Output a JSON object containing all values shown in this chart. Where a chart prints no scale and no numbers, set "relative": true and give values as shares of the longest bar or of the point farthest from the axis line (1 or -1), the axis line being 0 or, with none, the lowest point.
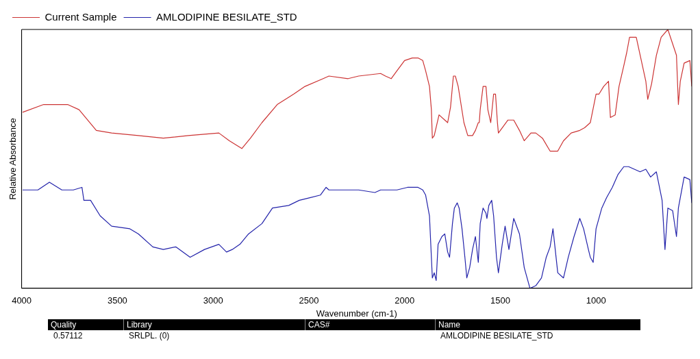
{
  "chart_data": {
    "type": "line",
    "relative": true,
    "xlabel": "Wavenumber (cm-1)",
    "ylabel": "Relative Absorbance",
    "legend": "top left",
    "grid": false,
    "marker": "none",
    "line_style": "solid",
    "xlim": [
      4000,
      500
    ],
    "xticks": [
      4000,
      3500,
      3000,
      2500,
      2000,
      1500,
      1000
    ],
    "annotations": [
      "Quality",
      "Library",
      "CAS#",
      "Name",
      "0.57112",
      "SRLPL. (0)",
      "AMLODIPINE BESILATE_STD"
    ],
    "series": [
      {
        "name": "Current Sample",
        "color": "#cc3333",
        "x": [
          3995,
          3885,
          3760,
          3700,
          3610,
          3530,
          3390,
          3260,
          3130,
          2970,
          2915,
          2850,
          2805,
          2745,
          2665,
          2580,
          2520,
          2425,
          2395,
          2295,
          2240,
          2125,
          2100,
          2070,
          2040,
          2000,
          1960,
          1930,
          1905,
          1890,
          1870,
          1860,
          1855,
          1845,
          1820,
          1790,
          1775,
          1760,
          1745,
          1735,
          1720,
          1690,
          1670,
          1645,
          1630,
          1615,
          1610,
          1605,
          1590,
          1575,
          1565,
          1550,
          1535,
          1525,
          1515,
          1510,
          1490,
          1460,
          1430,
          1400,
          1375,
          1340,
          1315,
          1280,
          1240,
          1200,
          1170,
          1130,
          1085,
          1060,
          1030,
          1000,
          985,
          960,
          935,
          925,
          900,
          880,
          855,
          840,
          825,
          790,
          740,
          730,
          710,
          685,
          660,
          625,
          580,
          570,
          560,
          540,
          510,
          500
        ],
        "values": [
          0.68,
          0.71,
          0.71,
          0.69,
          0.61,
          0.6,
          0.59,
          0.58,
          0.59,
          0.6,
          0.57,
          0.54,
          0.58,
          0.64,
          0.71,
          0.75,
          0.78,
          0.81,
          0.82,
          0.81,
          0.82,
          0.83,
          0.82,
          0.81,
          0.84,
          0.88,
          0.89,
          0.89,
          0.88,
          0.84,
          0.78,
          0.69,
          0.58,
          0.59,
          0.67,
          0.65,
          0.64,
          0.7,
          0.82,
          0.82,
          0.78,
          0.64,
          0.59,
          0.59,
          0.61,
          0.64,
          0.64,
          0.69,
          0.78,
          0.78,
          0.69,
          0.64,
          0.75,
          0.75,
          0.64,
          0.6,
          0.62,
          0.65,
          0.65,
          0.61,
          0.57,
          0.6,
          0.6,
          0.58,
          0.53,
          0.53,
          0.57,
          0.6,
          0.61,
          0.62,
          0.64,
          0.75,
          0.75,
          0.78,
          0.8,
          0.66,
          0.67,
          0.78,
          0.86,
          0.91,
          0.97,
          0.97,
          0.8,
          0.73,
          0.79,
          0.9,
          0.97,
          1,
          0.9,
          0.71,
          0.8,
          0.87,
          0.88,
          0.78
        ]
      },
      {
        "name": "AMLODIPINE BESILATE_STD",
        "color": "#2222aa",
        "x": [
          3995,
          3915,
          3855,
          3790,
          3730,
          3685,
          3675,
          3640,
          3590,
          3530,
          3435,
          3390,
          3315,
          3260,
          3195,
          3120,
          3045,
          2970,
          2930,
          2900,
          2860,
          2815,
          2745,
          2690,
          2605,
          2550,
          2495,
          2440,
          2410,
          2395,
          2240,
          2155,
          2125,
          2040,
          1985,
          1930,
          1905,
          1890,
          1870,
          1860,
          1855,
          1845,
          1835,
          1825,
          1805,
          1790,
          1775,
          1765,
          1750,
          1740,
          1725,
          1715,
          1700,
          1685,
          1675,
          1660,
          1645,
          1630,
          1615,
          1605,
          1590,
          1575,
          1570,
          1560,
          1545,
          1535,
          1520,
          1510,
          1490,
          1475,
          1455,
          1430,
          1400,
          1375,
          1345,
          1315,
          1285,
          1260,
          1240,
          1225,
          1200,
          1170,
          1145,
          1115,
          1085,
          1065,
          1040,
          1030,
          1015,
          1000,
          970,
          945,
          915,
          885,
          855,
          830,
          800,
          770,
          740,
          715,
          685,
          655,
          640,
          625,
          600,
          580,
          570,
          540,
          510,
          500
        ],
        "values": [
          0.38,
          0.38,
          0.41,
          0.38,
          0.38,
          0.39,
          0.34,
          0.34,
          0.28,
          0.24,
          0.23,
          0.21,
          0.16,
          0.15,
          0.16,
          0.12,
          0.15,
          0.17,
          0.14,
          0.15,
          0.17,
          0.21,
          0.25,
          0.31,
          0.32,
          0.34,
          0.35,
          0.36,
          0.39,
          0.38,
          0.38,
          0.37,
          0.38,
          0.38,
          0.39,
          0.39,
          0.38,
          0.36,
          0.28,
          0.12,
          0.04,
          0.06,
          0.03,
          0.17,
          0.2,
          0.21,
          0.14,
          0.12,
          0.25,
          0.31,
          0.33,
          0.31,
          0.23,
          0.12,
          0.04,
          0.08,
          0.15,
          0.2,
          0.1,
          0.25,
          0.31,
          0.29,
          0.27,
          0.32,
          0.34,
          0.28,
          0.12,
          0.06,
          0.17,
          0.24,
          0.15,
          0.27,
          0.21,
          0.08,
          0,
          0.01,
          0.04,
          0.12,
          0.16,
          0.23,
          0.06,
          0.04,
          0.12,
          0.2,
          0.27,
          0.23,
          0.15,
          0.12,
          0.1,
          0.23,
          0.31,
          0.35,
          0.39,
          0.44,
          0.47,
          0.47,
          0.46,
          0.45,
          0.46,
          0.43,
          0.45,
          0.34,
          0.15,
          0.31,
          0.3,
          0.2,
          0.31,
          0.43,
          0.42,
          0.33
        ]
      }
    ]
  }
}
